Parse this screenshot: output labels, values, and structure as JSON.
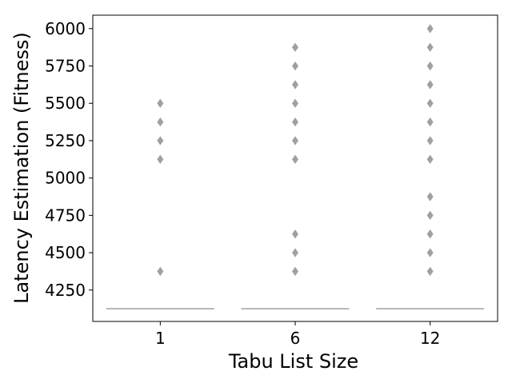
{
  "chart_data": {
    "type": "boxplot",
    "title": "",
    "xlabel": "Tabu List Size",
    "ylabel": "Latency Estimation (Fitness)",
    "categories": [
      "1",
      "6",
      "12"
    ],
    "ylim": [
      4040,
      6090
    ],
    "yticks": [
      4250,
      4500,
      4750,
      5000,
      5250,
      5500,
      5750,
      6000
    ],
    "ytick_labels": [
      "4250",
      "4500",
      "4750",
      "5000",
      "5250",
      "5500",
      "5750",
      "6000"
    ],
    "grid": false,
    "legend": "none",
    "box_color": "#a0a0a0",
    "median": [
      4125,
      4125,
      4125
    ],
    "outliers": [
      [
        4375,
        5125,
        5250,
        5375,
        5500
      ],
      [
        4375,
        4500,
        4625,
        5125,
        5250,
        5375,
        5500,
        5625,
        5750,
        5875
      ],
      [
        4375,
        4500,
        4625,
        4750,
        4875,
        5125,
        5250,
        5375,
        5500,
        5625,
        5750,
        5875,
        6000
      ]
    ]
  }
}
